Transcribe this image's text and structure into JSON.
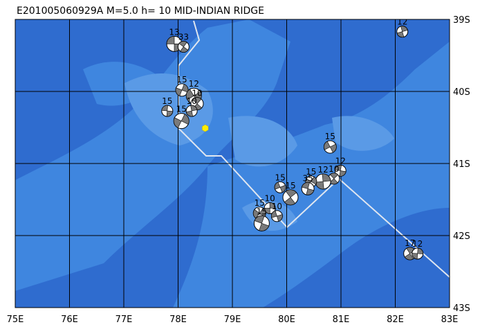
{
  "map": {
    "title": "E201005060929A M=5.0 h= 10 MID-INDIAN RIDGE",
    "xlim": [
      75,
      83
    ],
    "ylim": [
      39,
      43
    ],
    "xticks": [
      {
        "value": 75,
        "label": "75E"
      },
      {
        "value": 76,
        "label": "76E"
      },
      {
        "value": 77,
        "label": "77E"
      },
      {
        "value": 78,
        "label": "78E"
      },
      {
        "value": 79,
        "label": "79E"
      },
      {
        "value": 80,
        "label": "80E"
      },
      {
        "value": 81,
        "label": "81E"
      },
      {
        "value": 82,
        "label": "82E"
      },
      {
        "value": 83,
        "label": "83E"
      }
    ],
    "yticks": [
      {
        "value": 39,
        "label": "39S"
      },
      {
        "value": 40,
        "label": "40S"
      },
      {
        "value": 41,
        "label": "41S"
      },
      {
        "value": 42,
        "label": "42S"
      },
      {
        "value": 43,
        "label": "43S"
      }
    ],
    "epicenter": {
      "lon": 78.5,
      "lat": 40.51,
      "color": "#ffee00"
    },
    "events": [
      {
        "lon": 77.93,
        "lat": 39.34,
        "depth": "13"
      },
      {
        "lon": 78.1,
        "lat": 39.38,
        "depth": "33"
      },
      {
        "lon": 82.13,
        "lat": 39.17,
        "depth": "12"
      },
      {
        "lon": 78.07,
        "lat": 39.98,
        "depth": "15"
      },
      {
        "lon": 78.29,
        "lat": 40.06,
        "depth": "12"
      },
      {
        "lon": 77.8,
        "lat": 40.27,
        "depth": "15"
      },
      {
        "lon": 78.35,
        "lat": 40.17,
        "depth": "10"
      },
      {
        "lon": 78.25,
        "lat": 40.27,
        "depth": "10"
      },
      {
        "lon": 78.06,
        "lat": 40.41,
        "depth": "15"
      },
      {
        "lon": 80.8,
        "lat": 40.77,
        "depth": "15"
      },
      {
        "lon": 80.99,
        "lat": 41.1,
        "depth": "12"
      },
      {
        "lon": 80.87,
        "lat": 41.21,
        "depth": "10"
      },
      {
        "lon": 80.67,
        "lat": 41.25,
        "depth": "12"
      },
      {
        "lon": 80.45,
        "lat": 41.25,
        "depth": "15"
      },
      {
        "lon": 79.88,
        "lat": 41.33,
        "depth": "15"
      },
      {
        "lon": 80.39,
        "lat": 41.35,
        "depth": "35"
      },
      {
        "lon": 80.07,
        "lat": 41.47,
        "depth": "15"
      },
      {
        "lon": 79.69,
        "lat": 41.62,
        "depth": "10"
      },
      {
        "lon": 79.5,
        "lat": 41.69,
        "depth": "15"
      },
      {
        "lon": 79.82,
        "lat": 41.73,
        "depth": "10"
      },
      {
        "lon": 79.54,
        "lat": 41.83,
        "depth": "15"
      },
      {
        "lon": 82.27,
        "lat": 42.25,
        "depth": "17"
      },
      {
        "lon": 82.41,
        "lat": 42.25,
        "depth": "12"
      }
    ]
  }
}
